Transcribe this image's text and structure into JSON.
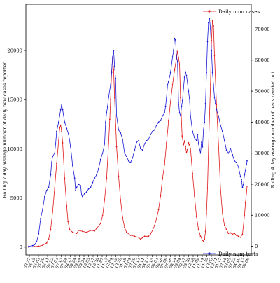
{
  "chart_data": {
    "type": "line",
    "title": "",
    "xlabel": "",
    "ylabel_left": "Rolling 7 day average number of daily new cases reported",
    "ylabel_right": "Rolling 4 day average number of tests carried out",
    "x_tick_labels": [
      "03-27",
      "04-15",
      "05-03",
      "05-20",
      "06-11",
      "06-22",
      "07-02",
      "07-13",
      "07-24",
      "08-13",
      "08-24",
      "09-14",
      "09-24",
      "10-05",
      "10-17",
      "10-28",
      "11-07",
      "11-17",
      "12-04",
      "12-12",
      "12-28",
      "01-18",
      "02-04",
      "02-20",
      "03-13",
      "04-11",
      "04-27",
      "05-15",
      "06-03",
      "06-18",
      "07-06",
      "07-16",
      "08-14",
      "09-04",
      "09-17",
      "09-28",
      "10-18",
      "11-02",
      "11-14",
      "11-20",
      "12-03",
      "12-31",
      "01-17",
      "02-14",
      "03-05",
      "03-22",
      "04-10",
      "04-17",
      "06-06"
    ],
    "left_axis": {
      "ylim": [
        -800,
        24700
      ],
      "ticks": [
        0,
        5000,
        10000,
        15000,
        20000
      ]
    },
    "right_axis": {
      "ylim": [
        -2800,
        78000
      ],
      "ticks": [
        0,
        10000,
        20000,
        30000,
        40000,
        50000,
        60000,
        70000
      ]
    },
    "grid": false,
    "series": [
      {
        "name": "Daily num cases",
        "axis": "left",
        "color": "#e0191b",
        "points": [
          [
            0,
            0
          ],
          [
            3,
            50
          ],
          [
            5,
            90
          ],
          [
            7,
            180
          ],
          [
            9,
            420
          ],
          [
            10,
            800
          ],
          [
            11,
            1800
          ],
          [
            12,
            3600
          ],
          [
            13,
            6000
          ],
          [
            14,
            8500
          ],
          [
            15,
            10800
          ],
          [
            15.5,
            12100
          ],
          [
            16,
            12400
          ],
          [
            16.5,
            11800
          ],
          [
            17,
            10600
          ],
          [
            18,
            7000
          ],
          [
            19,
            4200
          ],
          [
            19.7,
            2600
          ],
          [
            20.5,
            1800
          ],
          [
            22,
            1500
          ],
          [
            24,
            1400
          ],
          [
            25,
            1700
          ],
          [
            27,
            1600
          ],
          [
            29,
            1500
          ],
          [
            31,
            1700
          ],
          [
            33,
            1650
          ],
          [
            34,
            1900
          ],
          [
            36,
            2400
          ],
          [
            37,
            3200
          ],
          [
            38,
            4800
          ],
          [
            39,
            7000
          ],
          [
            40,
            10500
          ],
          [
            40.6,
            13000
          ],
          [
            41,
            15000
          ],
          [
            41.5,
            17800
          ],
          [
            42,
            19200
          ],
          [
            42.5,
            18000
          ],
          [
            43,
            15200
          ],
          [
            44,
            10200
          ],
          [
            45,
            7200
          ],
          [
            46,
            4800
          ],
          [
            47,
            3000
          ],
          [
            48,
            2000
          ],
          [
            49,
            1500
          ],
          [
            51,
            1200
          ],
          [
            53,
            1100
          ],
          [
            55,
            1000
          ],
          [
            56,
            800
          ],
          [
            57,
            950
          ],
          [
            58,
            1100
          ],
          [
            60,
            1100
          ],
          [
            61,
            1350
          ],
          [
            62,
            1700
          ],
          [
            63,
            2200
          ],
          [
            64,
            2900
          ],
          [
            65,
            3800
          ],
          [
            66,
            5200
          ],
          [
            67,
            7000
          ],
          [
            68,
            8400
          ],
          [
            69,
            10600
          ],
          [
            70,
            12800
          ],
          [
            71,
            14800
          ],
          [
            72,
            16500
          ],
          [
            73,
            18000
          ],
          [
            74,
            19200
          ],
          [
            74.5,
            19900
          ],
          [
            75,
            19300
          ],
          [
            75.5,
            18600
          ],
          [
            76,
            15200
          ],
          [
            76.8,
            11300
          ],
          [
            77.5,
            10400
          ],
          [
            78,
            10800
          ],
          [
            78.5,
            10200
          ],
          [
            79,
            9600
          ],
          [
            79.5,
            9900
          ],
          [
            80,
            10600
          ],
          [
            80.5,
            10400
          ],
          [
            81,
            10000
          ],
          [
            82,
            7500
          ],
          [
            83,
            5200
          ],
          [
            84,
            3100
          ],
          [
            85,
            1800
          ],
          [
            86,
            1100
          ],
          [
            87,
            700
          ],
          [
            87.5,
            600
          ],
          [
            88,
            800
          ],
          [
            88.5,
            1600
          ],
          [
            89,
            3400
          ],
          [
            89.5,
            6000
          ],
          [
            90,
            10000
          ],
          [
            91,
            16500
          ],
          [
            91.5,
            21000
          ],
          [
            92,
            23000
          ],
          [
            92.5,
            22500
          ],
          [
            93,
            19500
          ],
          [
            94,
            14500
          ],
          [
            95,
            10500
          ],
          [
            96,
            6000
          ],
          [
            97,
            3400
          ],
          [
            98,
            2200
          ],
          [
            99,
            1800
          ],
          [
            100,
            1400
          ],
          [
            101,
            1450
          ],
          [
            102,
            1300
          ],
          [
            103,
            1400
          ],
          [
            104,
            1200
          ],
          [
            105,
            1100
          ],
          [
            106,
            1000
          ],
          [
            107,
            1300
          ],
          [
            108,
            3200
          ],
          [
            108.5,
            4500
          ],
          [
            109,
            5500
          ],
          [
            109.3,
            6200
          ]
        ]
      },
      {
        "name": "Daily num tests",
        "axis": "right",
        "color": "#1a1ad6",
        "points": [
          [
            0,
            0
          ],
          [
            2,
            200
          ],
          [
            3,
            600
          ],
          [
            4,
            1500
          ],
          [
            5,
            4000
          ],
          [
            6,
            9000
          ],
          [
            7,
            12000
          ],
          [
            8,
            16000
          ],
          [
            9,
            18000
          ],
          [
            10,
            19000
          ],
          [
            11,
            23000
          ],
          [
            11.5,
            27000
          ],
          [
            12,
            29000
          ],
          [
            13,
            30000
          ],
          [
            13.5,
            33000
          ],
          [
            14,
            37000
          ],
          [
            15,
            40000
          ],
          [
            16,
            44000
          ],
          [
            16.5,
            45500
          ],
          [
            17,
            44000
          ],
          [
            18,
            40000
          ],
          [
            19,
            38000
          ],
          [
            20,
            36000
          ],
          [
            21,
            32000
          ],
          [
            22,
            26000
          ],
          [
            23,
            22000
          ],
          [
            23.5,
            18000
          ],
          [
            24,
            19000
          ],
          [
            25,
            20000
          ],
          [
            26,
            19500
          ],
          [
            26.5,
            16500
          ],
          [
            27,
            16000
          ],
          [
            28,
            17000
          ],
          [
            29,
            17500
          ],
          [
            30,
            18500
          ],
          [
            31,
            19000
          ],
          [
            32,
            20500
          ],
          [
            33,
            22000
          ],
          [
            34,
            23000
          ],
          [
            35,
            25000
          ],
          [
            36,
            28000
          ],
          [
            37,
            30000
          ],
          [
            38,
            33000
          ],
          [
            38.5,
            40000
          ],
          [
            39,
            43000
          ],
          [
            39.5,
            45000
          ],
          [
            40,
            48000
          ],
          [
            41,
            52000
          ],
          [
            41.5,
            56000
          ],
          [
            42,
            61000
          ],
          [
            42.5,
            63000
          ],
          [
            43,
            58000
          ],
          [
            43.5,
            54000
          ],
          [
            44,
            42000
          ],
          [
            45,
            37500
          ],
          [
            46,
            36500
          ],
          [
            47,
            34500
          ],
          [
            48,
            30000
          ],
          [
            49,
            29000
          ],
          [
            50,
            27500
          ],
          [
            51,
            27000
          ],
          [
            52,
            28500
          ],
          [
            53,
            31000
          ],
          [
            54,
            33500
          ],
          [
            55,
            34000
          ],
          [
            56,
            31500
          ],
          [
            57,
            31000
          ],
          [
            58,
            33000
          ],
          [
            59,
            34000
          ],
          [
            60,
            34500
          ],
          [
            61,
            36000
          ],
          [
            62,
            37000
          ],
          [
            63,
            37500
          ],
          [
            64,
            39000
          ],
          [
            65,
            40000
          ],
          [
            66,
            40500
          ],
          [
            67,
            42000
          ],
          [
            68,
            43000
          ],
          [
            68.5,
            45000
          ],
          [
            69,
            48000
          ],
          [
            69.5,
            52000
          ],
          [
            70,
            53000
          ],
          [
            71,
            56000
          ],
          [
            72,
            61000
          ],
          [
            72.5,
            63000
          ],
          [
            73,
            67000
          ],
          [
            73.5,
            66500
          ],
          [
            74,
            61000
          ],
          [
            74.5,
            59500
          ],
          [
            75,
            46500
          ],
          [
            75.5,
            43000
          ],
          [
            76,
            42000
          ],
          [
            76.5,
            45000
          ],
          [
            77,
            47000
          ],
          [
            77.5,
            51000
          ],
          [
            78,
            54500
          ],
          [
            78.5,
            56000
          ],
          [
            79,
            55000
          ],
          [
            80,
            50000
          ],
          [
            80.5,
            47500
          ],
          [
            81,
            42000
          ],
          [
            82,
            37000
          ],
          [
            83,
            35000
          ],
          [
            84,
            34000
          ],
          [
            84.5,
            36000
          ],
          [
            85,
            33000
          ],
          [
            86,
            30000
          ],
          [
            86.5,
            33500
          ],
          [
            87,
            32000
          ],
          [
            87.5,
            37500
          ],
          [
            88,
            40000
          ],
          [
            88.5,
            46000
          ],
          [
            89,
            56000
          ],
          [
            89.5,
            66000
          ],
          [
            90,
            72000
          ],
          [
            90.5,
            73500
          ],
          [
            91,
            70000
          ],
          [
            91.5,
            63000
          ],
          [
            92,
            56000
          ],
          [
            92.5,
            52000
          ],
          [
            93,
            48000
          ],
          [
            93.5,
            46000
          ],
          [
            94,
            44000
          ],
          [
            95,
            42000
          ],
          [
            96,
            39000
          ],
          [
            97,
            37000
          ],
          [
            98,
            34000
          ],
          [
            99,
            31000
          ],
          [
            100,
            30000
          ],
          [
            101,
            31500
          ],
          [
            102,
            29500
          ],
          [
            103,
            27500
          ],
          [
            104,
            27000
          ],
          [
            105,
            25500
          ],
          [
            106,
            22500
          ],
          [
            106.5,
            21500
          ],
          [
            107,
            19000
          ],
          [
            107.5,
            20000
          ],
          [
            108,
            23000
          ],
          [
            108.5,
            24500
          ],
          [
            109,
            26500
          ],
          [
            109.3,
            27500
          ]
        ]
      }
    ]
  }
}
